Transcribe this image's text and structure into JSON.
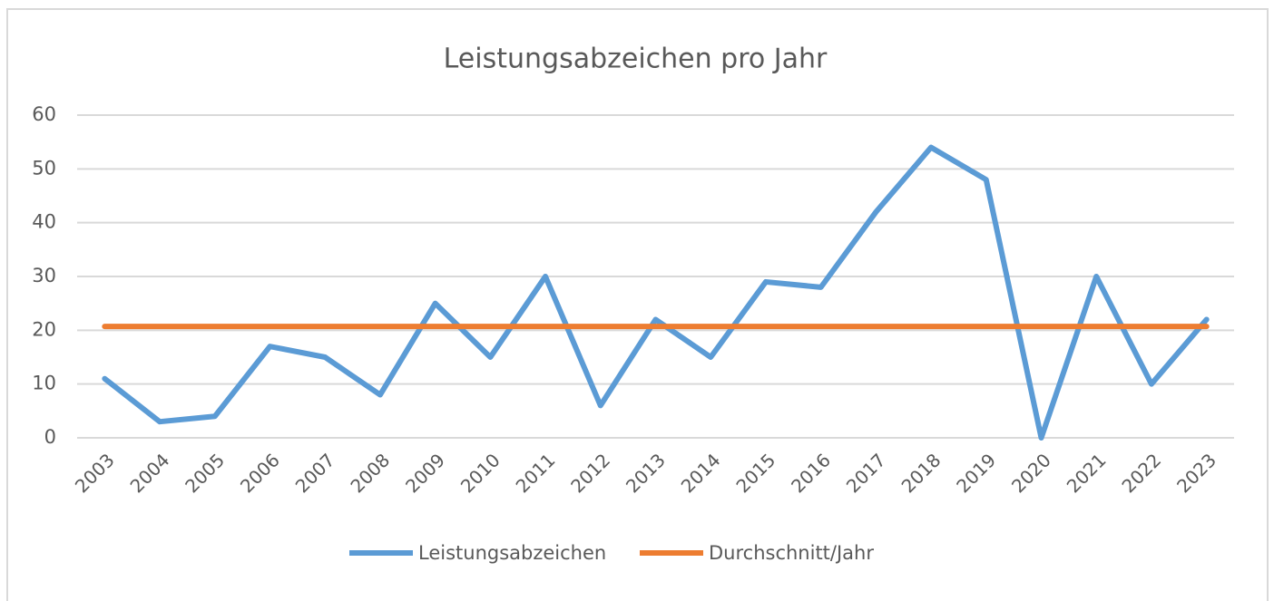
{
  "chart_data": {
    "type": "line",
    "title": "Leistungsabzeichen pro Jahr",
    "categories": [
      "2003",
      "2004",
      "2005",
      "2006",
      "2007",
      "2008",
      "2009",
      "2010",
      "2011",
      "2012",
      "2013",
      "2014",
      "2015",
      "2016",
      "2017",
      "2018",
      "2019",
      "2020",
      "2021",
      "2022",
      "2023"
    ],
    "series": [
      {
        "name": "Leistungsabzeichen",
        "color": "#5b9bd5",
        "values": [
          11,
          3,
          4,
          17,
          15,
          8,
          25,
          15,
          30,
          6,
          22,
          15,
          29,
          28,
          42,
          54,
          48,
          0,
          30,
          10,
          22
        ]
      },
      {
        "name": "Durchschnitt/Jahr",
        "color": "#ed7d31",
        "values": [
          20.7,
          20.7,
          20.7,
          20.7,
          20.7,
          20.7,
          20.7,
          20.7,
          20.7,
          20.7,
          20.7,
          20.7,
          20.7,
          20.7,
          20.7,
          20.7,
          20.7,
          20.7,
          20.7,
          20.7,
          20.7
        ]
      }
    ],
    "ylim": [
      0,
      60
    ],
    "yticks": [
      0,
      10,
      20,
      30,
      40,
      50,
      60
    ],
    "grid": true,
    "legend": "bottom"
  }
}
